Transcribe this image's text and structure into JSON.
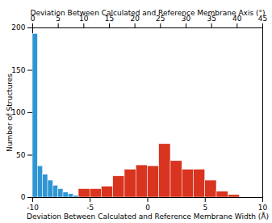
{
  "chart_data": {
    "type": "histogram",
    "y_label": "Number of Structures",
    "ylim": [
      0,
      200
    ],
    "yticks": [
      0,
      50,
      100,
      150,
      200
    ],
    "x_label": "Deviation Between Calculated and Reference Membrane Width (Å)",
    "xlim": [
      -10,
      10
    ],
    "xticks": [
      -10,
      -5,
      0,
      5,
      10
    ],
    "x2_label": "Deviation Between Calculated and Reference Membrane Axis (°)",
    "x2lim": [
      0,
      45
    ],
    "x2ticks": [
      0,
      5,
      10,
      15,
      20,
      25,
      30,
      35,
      40,
      45
    ],
    "series": [
      {
        "axis": "x2",
        "color": "#2f95d3",
        "bins": [
          0,
          1,
          2,
          3,
          4,
          5,
          6,
          7,
          8,
          9
        ],
        "values": [
          193,
          37,
          27,
          20,
          14,
          10,
          6,
          4,
          2
        ]
      },
      {
        "color": "#d8341f",
        "bins": [
          -6,
          -5,
          -4,
          -3,
          -2,
          -1,
          0,
          1,
          2,
          3,
          4,
          5,
          6,
          7,
          8
        ],
        "values": [
          10,
          10,
          13,
          25,
          33,
          38,
          37,
          63,
          43,
          33,
          33,
          20,
          7,
          3
        ]
      }
    ]
  }
}
